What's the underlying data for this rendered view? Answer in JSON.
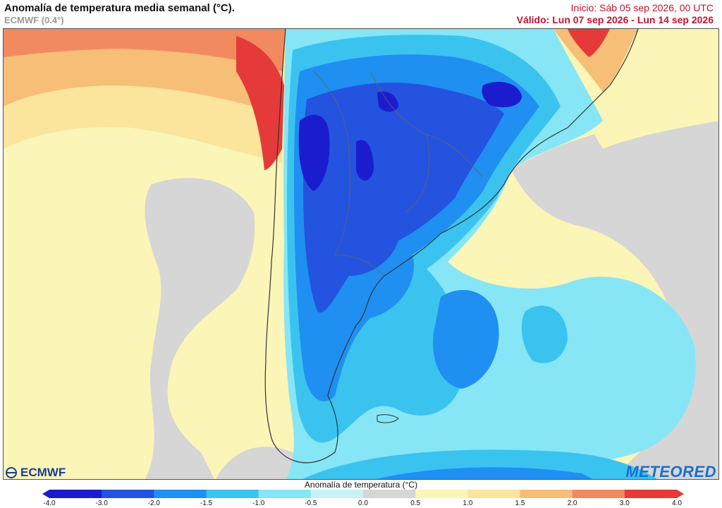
{
  "header": {
    "title": "Anomalía de temperatura media semanal (°C).",
    "model": "ECMWF (0.4°)",
    "init": "Inicio: Sáb 05 sep 2026, 00 UTC",
    "valid": "Válido: Lun 07 sep 2026 - Lun 14 sep 2026"
  },
  "logos": {
    "left": "ECMWF",
    "right": "METEORED"
  },
  "colorbar": {
    "title": "Anomalía de temperatura (°C)",
    "ticks": [
      "-4.0",
      "-3.0",
      "-2.0",
      "-1.5",
      "-1.0",
      "-0.5",
      "0.0",
      "0.5",
      "1.0",
      "1.5",
      "2.0",
      "3.0",
      "4.0"
    ],
    "colors": [
      "#1c1ccf",
      "#2453e0",
      "#1f8ff2",
      "#3bc3f0",
      "#86e6f5",
      "#c8f2f8",
      "#d6d6d6",
      "#fbf5b8",
      "#fbe49c",
      "#f7be78",
      "#f28a60",
      "#e53a3a"
    ]
  },
  "map": {
    "region": "South America (South)",
    "colors": {
      "ocean_neutral": "#d6d6d6",
      "warm_light": "#fbf5b8",
      "warm_mid": "#fbe49c",
      "warm_orange": "#f7be78",
      "warm_red": "#f28a60",
      "hot": "#e53a3a",
      "cold_light": "#c8f2f8",
      "cold_lighter": "#86e6f5",
      "cold_mid": "#3bc3f0",
      "cold_blue": "#1f8ff2",
      "cold_deep": "#2453e0",
      "cold_darkest": "#1c1ccf"
    }
  }
}
